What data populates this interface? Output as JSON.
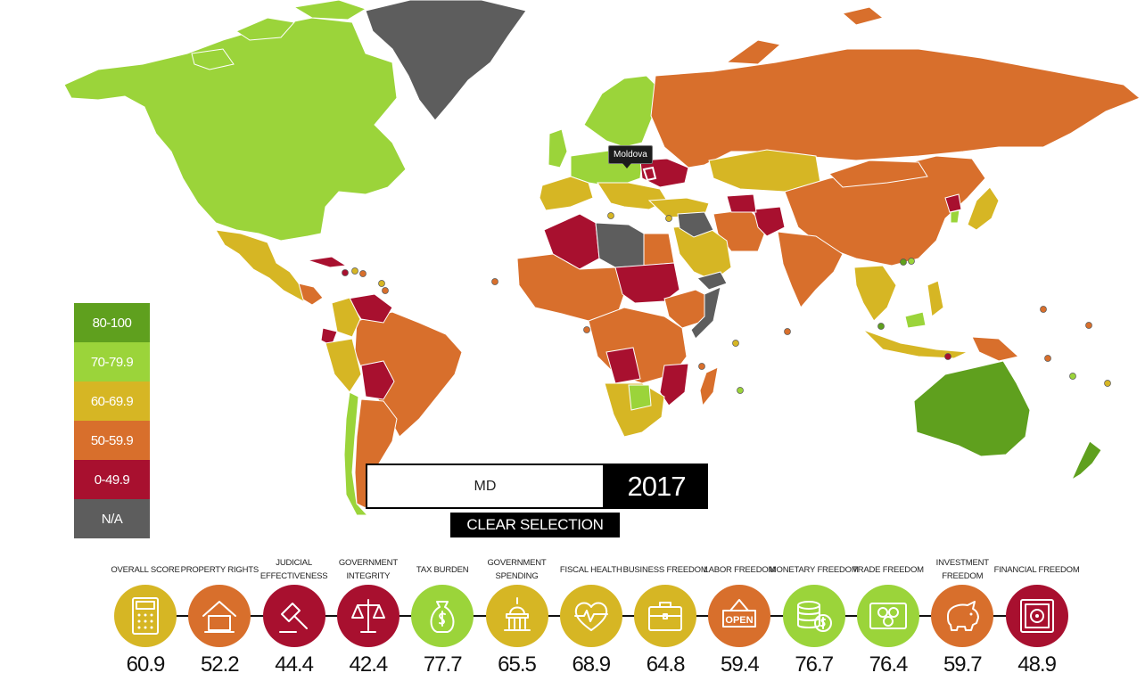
{
  "colors": {
    "c80": "#5fa01e",
    "c70": "#9bd43a",
    "c60": "#d6b624",
    "c50": "#d86f2c",
    "c0": "#a8102f",
    "na": "#5d5d5d",
    "water": "#ffffff",
    "border": "#ffffff"
  },
  "tooltip": {
    "country": "Moldova"
  },
  "legend": [
    {
      "label": "80-100",
      "color": "#5fa01e"
    },
    {
      "label": "70-79.9",
      "color": "#9bd43a"
    },
    {
      "label": "60-69.9",
      "color": "#d6b624"
    },
    {
      "label": "50-59.9",
      "color": "#d86f2c"
    },
    {
      "label": "0-49.9",
      "color": "#a8102f"
    },
    {
      "label": "N/A",
      "color": "#5d5d5d"
    }
  ],
  "search": {
    "value": "MD"
  },
  "year": "2017",
  "clear_label": "CLEAR SELECTION",
  "indicators": [
    {
      "label": "OVERALL SCORE",
      "score": "60.9",
      "color": "#d6b624",
      "icon": "calculator-icon"
    },
    {
      "label": "PROPERTY RIGHTS",
      "score": "52.2",
      "color": "#d86f2c",
      "icon": "house-icon"
    },
    {
      "label": "JUDICIAL EFFECTIVENESS",
      "score": "44.4",
      "color": "#a8102f",
      "icon": "gavel-icon"
    },
    {
      "label": "GOVERNMENT INTEGRITY",
      "score": "42.4",
      "color": "#a8102f",
      "icon": "scales-icon"
    },
    {
      "label": "TAX BURDEN",
      "score": "77.7",
      "color": "#9bd43a",
      "icon": "money-bag-icon"
    },
    {
      "label": "GOVERNMENT SPENDING",
      "score": "65.5",
      "color": "#d6b624",
      "icon": "capitol-icon"
    },
    {
      "label": "FISCAL HEALTH",
      "score": "68.9",
      "color": "#d6b624",
      "icon": "heartbeat-icon"
    },
    {
      "label": "BUSINESS FREEDOM",
      "score": "64.8",
      "color": "#d6b624",
      "icon": "briefcase-icon"
    },
    {
      "label": "LABOR FREEDOM",
      "score": "59.4",
      "color": "#d86f2c",
      "icon": "open-sign-icon"
    },
    {
      "label": "MONETARY FREEDOM",
      "score": "76.7",
      "color": "#9bd43a",
      "icon": "coins-icon"
    },
    {
      "label": "TRADE FREEDOM",
      "score": "76.4",
      "color": "#9bd43a",
      "icon": "currency-note-icon"
    },
    {
      "label": "INVESTMENT FREEDOM",
      "score": "59.7",
      "color": "#d86f2c",
      "icon": "piggy-bank-icon"
    },
    {
      "label": "FINANCIAL FREEDOM",
      "score": "48.9",
      "color": "#a8102f",
      "icon": "safe-icon"
    }
  ]
}
